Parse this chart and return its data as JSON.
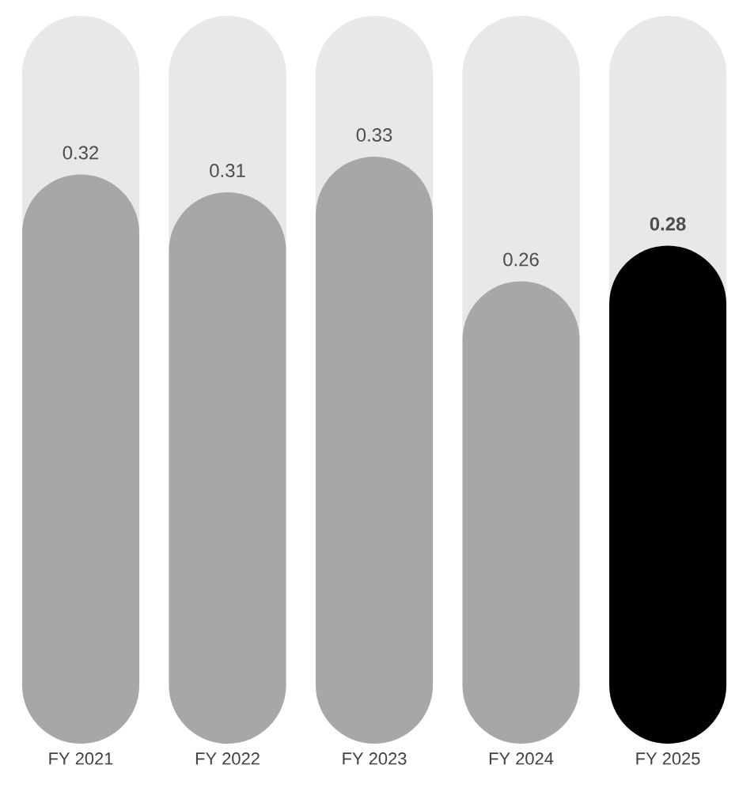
{
  "chart_data": {
    "type": "bar",
    "categories": [
      "FY 2021",
      "FY 2022",
      "FY 2023",
      "FY 2024",
      "FY 2025"
    ],
    "values": [
      0.32,
      0.31,
      0.33,
      0.26,
      0.28
    ],
    "value_labels": [
      "0.32",
      "0.31",
      "0.33",
      "0.26",
      "**0.28**"
    ],
    "colors": [
      "#a7a7aa",
      "#a7a7aa",
      "#a7a7aa",
      "#a7a7aa",
      "#000000"
    ]
  }
}
